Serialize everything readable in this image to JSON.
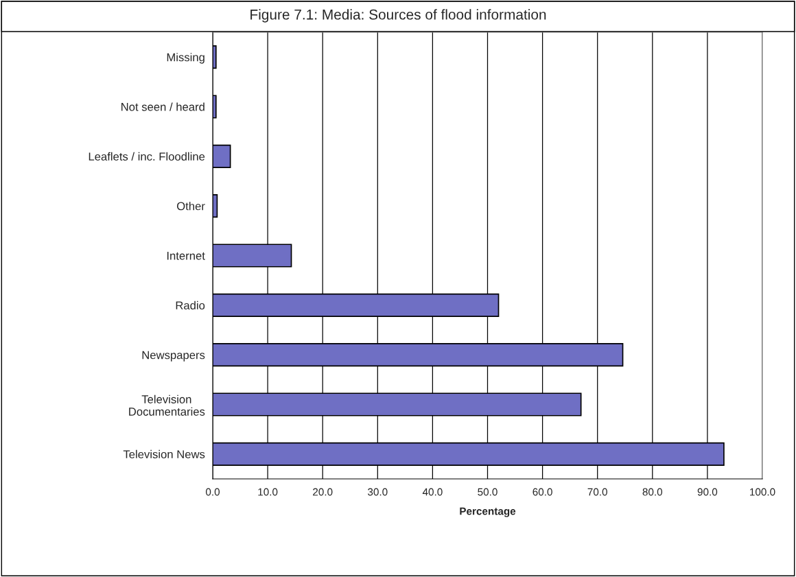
{
  "chart_data": {
    "type": "bar",
    "orientation": "horizontal",
    "title": "Figure 7.1: Media: Sources of flood information",
    "xlabel": "Percentage",
    "categories": [
      "Missing",
      "Not seen / heard",
      "Leaflets / inc. Floodline",
      "Other",
      "Internet",
      "Radio",
      "Newspapers",
      "Television\nDocumentaries",
      "Television News"
    ],
    "values": [
      0.6,
      0.6,
      3.2,
      0.8,
      14.3,
      52.0,
      74.6,
      67.0,
      93.0
    ],
    "color": "#6f6fc4",
    "xlim": [
      0,
      100
    ],
    "xticks": [
      {
        "value": 0,
        "label": "0.0"
      },
      {
        "value": 10,
        "label": "10.0"
      },
      {
        "value": 20,
        "label": "20.0"
      },
      {
        "value": 30,
        "label": "30.0"
      },
      {
        "value": 40,
        "label": "40.0"
      },
      {
        "value": 50,
        "label": "50.0"
      },
      {
        "value": 60,
        "label": "60.0"
      },
      {
        "value": 70,
        "label": "70.0"
      },
      {
        "value": 80,
        "label": "80.0"
      },
      {
        "value": 90,
        "label": "90.0"
      },
      {
        "value": 100,
        "label": "100.0"
      }
    ],
    "grid": "x",
    "legend": false
  }
}
